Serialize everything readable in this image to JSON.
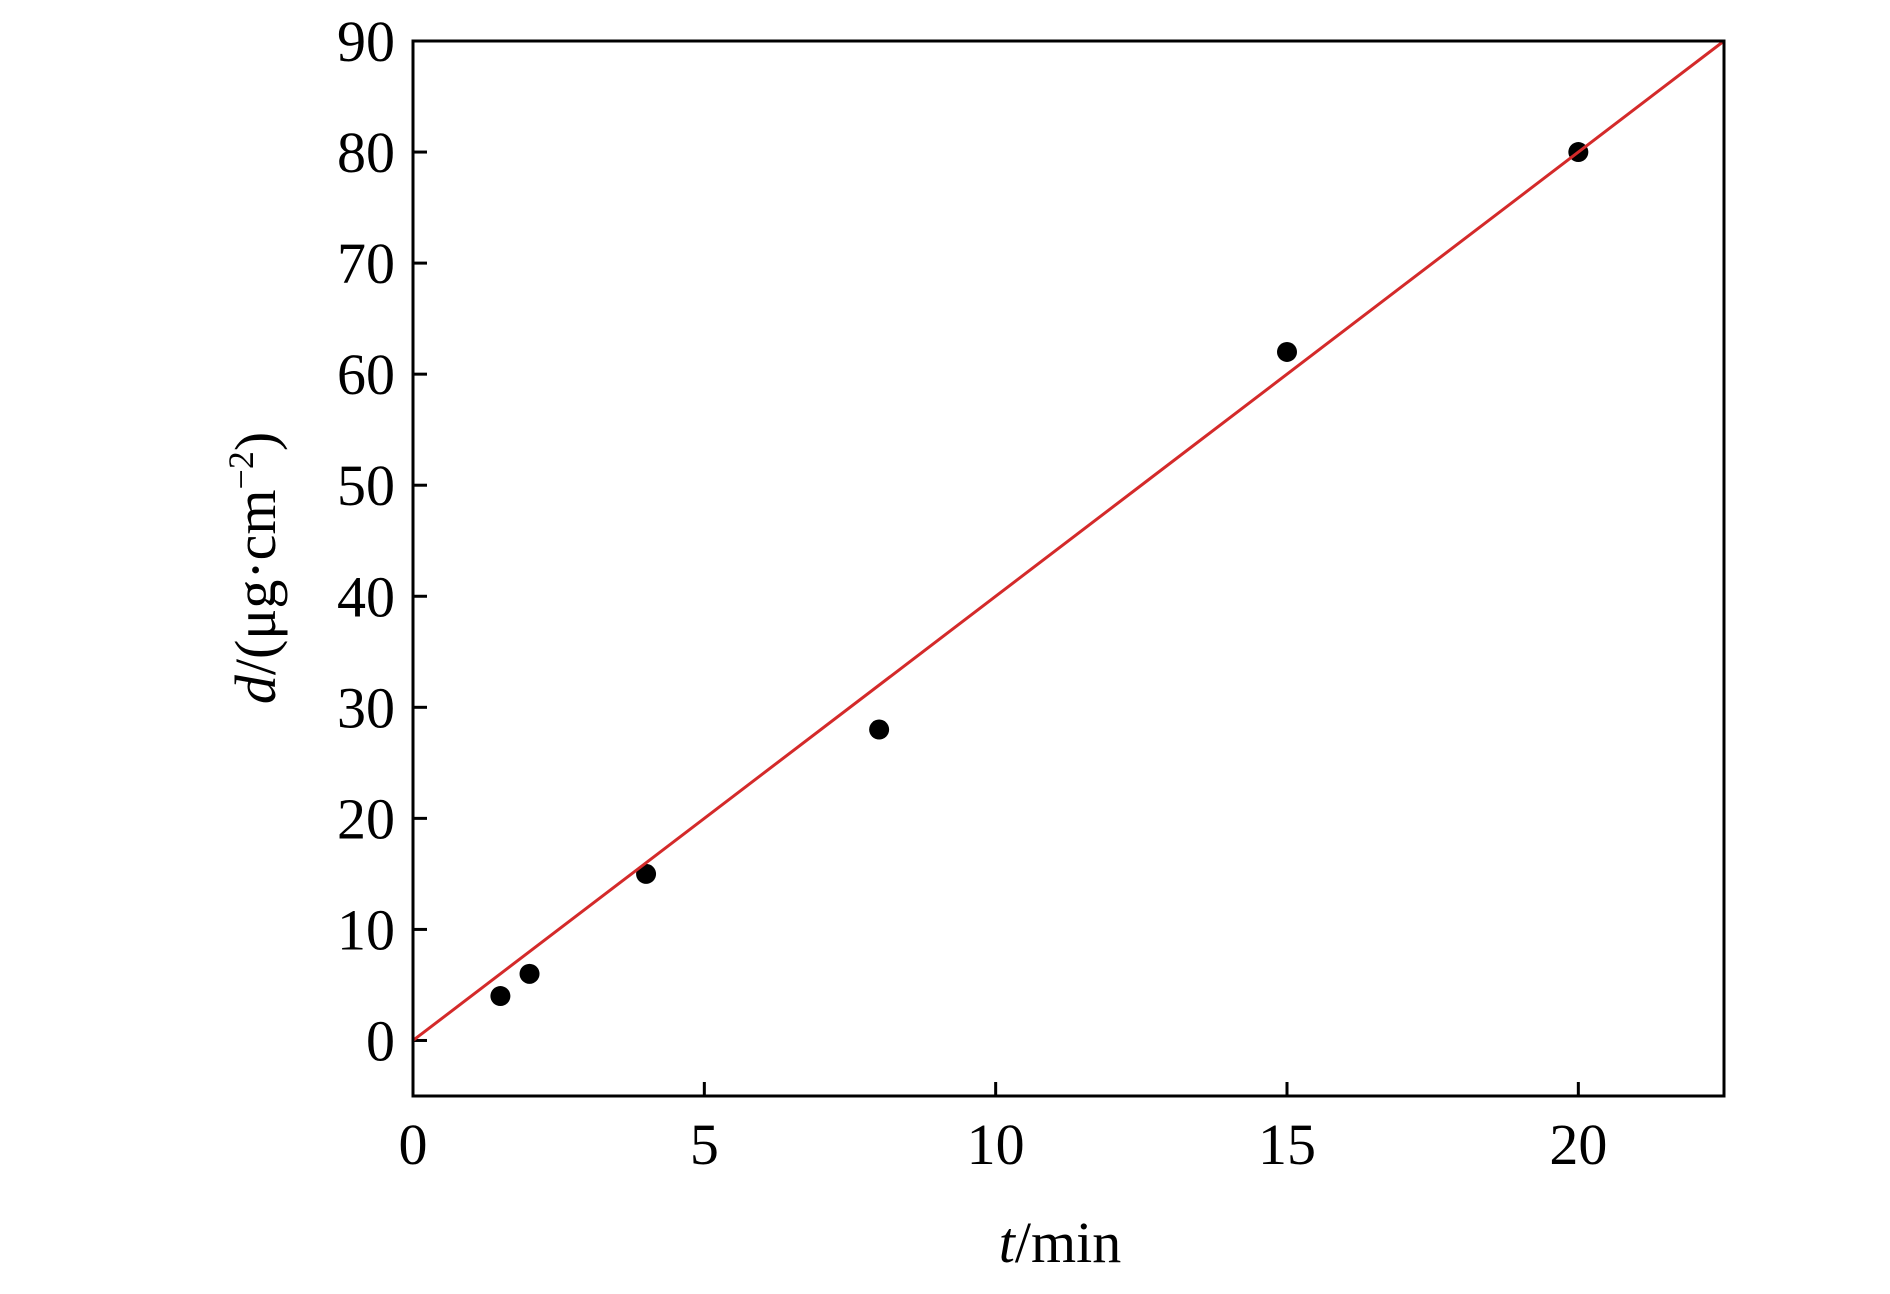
{
  "chart_data": {
    "type": "scatter",
    "xlabel": {
      "var": "t",
      "unit": "/min"
    },
    "ylabel": {
      "var": "d",
      "unit": "/(μg·cm",
      "exp": "−2",
      "close": ")"
    },
    "xlim": [
      0,
      22.5
    ],
    "ylim": [
      -5,
      90
    ],
    "xticks": [
      0,
      5,
      10,
      15,
      20
    ],
    "yticks": [
      0,
      10,
      20,
      30,
      40,
      50,
      60,
      70,
      80,
      90
    ],
    "series": [
      {
        "mode": "markers",
        "color": "#000000",
        "x": [
          1.5,
          2,
          4,
          8,
          15,
          20
        ],
        "values": [
          4,
          6,
          15,
          28,
          62,
          80
        ]
      },
      {
        "mode": "line",
        "color": "#d42a2a",
        "x": [
          0,
          22.5
        ],
        "values": [
          0,
          90
        ]
      }
    ]
  }
}
